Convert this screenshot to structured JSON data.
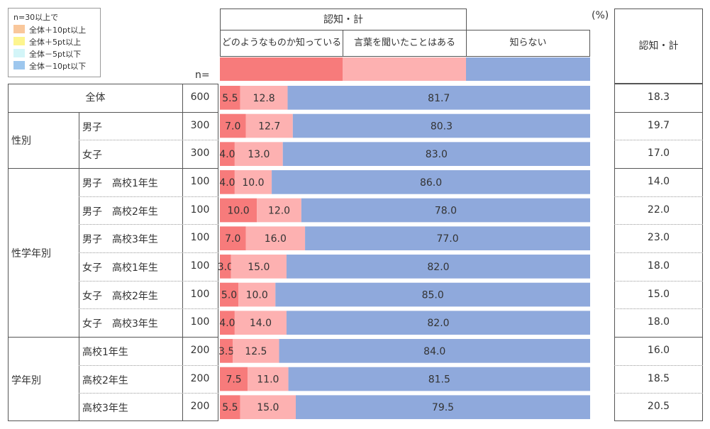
{
  "legend": {
    "title": "n=30以上で",
    "items": [
      {
        "label": "全体＋10pt以上",
        "color": "#f9c79b"
      },
      {
        "label": "全体＋5pt以上",
        "color": "#fdf58f"
      },
      {
        "label": "全体－5pt以下",
        "color": "#d3f5f8"
      },
      {
        "label": "全体－10pt以下",
        "color": "#9dc7ee"
      }
    ]
  },
  "header": {
    "group_label": "認知・計",
    "pct_label": "(%)",
    "n_label": "n=",
    "total_label": "認知・計"
  },
  "chart_data": {
    "type": "bar",
    "stacked": true,
    "orientation": "horizontal",
    "series": [
      {
        "name": "どのようなものか知っている",
        "color": "#f77b7b",
        "values": [
          5.5,
          7.0,
          4.0,
          4.0,
          10.0,
          7.0,
          3.0,
          5.0,
          4.0,
          3.5,
          7.5,
          5.5
        ]
      },
      {
        "name": "言葉を聞いたことはある",
        "color": "#fdb1b1",
        "values": [
          12.8,
          12.7,
          13.0,
          10.0,
          12.0,
          16.0,
          15.0,
          10.0,
          14.0,
          12.5,
          11.0,
          15.0
        ]
      },
      {
        "name": "知らない",
        "color": "#8fa9dc",
        "values": [
          81.7,
          80.3,
          83.0,
          86.0,
          78.0,
          77.0,
          82.0,
          85.0,
          82.0,
          84.0,
          81.5,
          79.5
        ]
      }
    ],
    "rows": [
      {
        "group": "",
        "label": "全体",
        "n": "600",
        "total": "18.3"
      },
      {
        "group": "性別",
        "label": "男子",
        "n": "300",
        "total": "19.7"
      },
      {
        "group": "",
        "label": "女子",
        "n": "300",
        "total": "17.0"
      },
      {
        "group": "",
        "label": "男子　高校1年生",
        "n": "100",
        "total": "14.0"
      },
      {
        "group": "",
        "label": "男子　高校2年生",
        "n": "100",
        "total": "22.0"
      },
      {
        "group": "",
        "label": "男子　高校3年生",
        "n": "100",
        "total": "23.0"
      },
      {
        "group": "性学年別",
        "label": "女子　高校1年生",
        "n": "100",
        "total": "18.0"
      },
      {
        "group": "",
        "label": "女子　高校2年生",
        "n": "100",
        "total": "15.0"
      },
      {
        "group": "",
        "label": "女子　高校3年生",
        "n": "100",
        "total": "18.0"
      },
      {
        "group": "",
        "label": "高校1年生",
        "n": "200",
        "total": "16.0"
      },
      {
        "group": "学年別",
        "label": "高校2年生",
        "n": "200",
        "total": "18.5"
      },
      {
        "group": "",
        "label": "高校3年生",
        "n": "200",
        "total": "20.5"
      }
    ],
    "xlim": [
      0,
      100
    ]
  }
}
